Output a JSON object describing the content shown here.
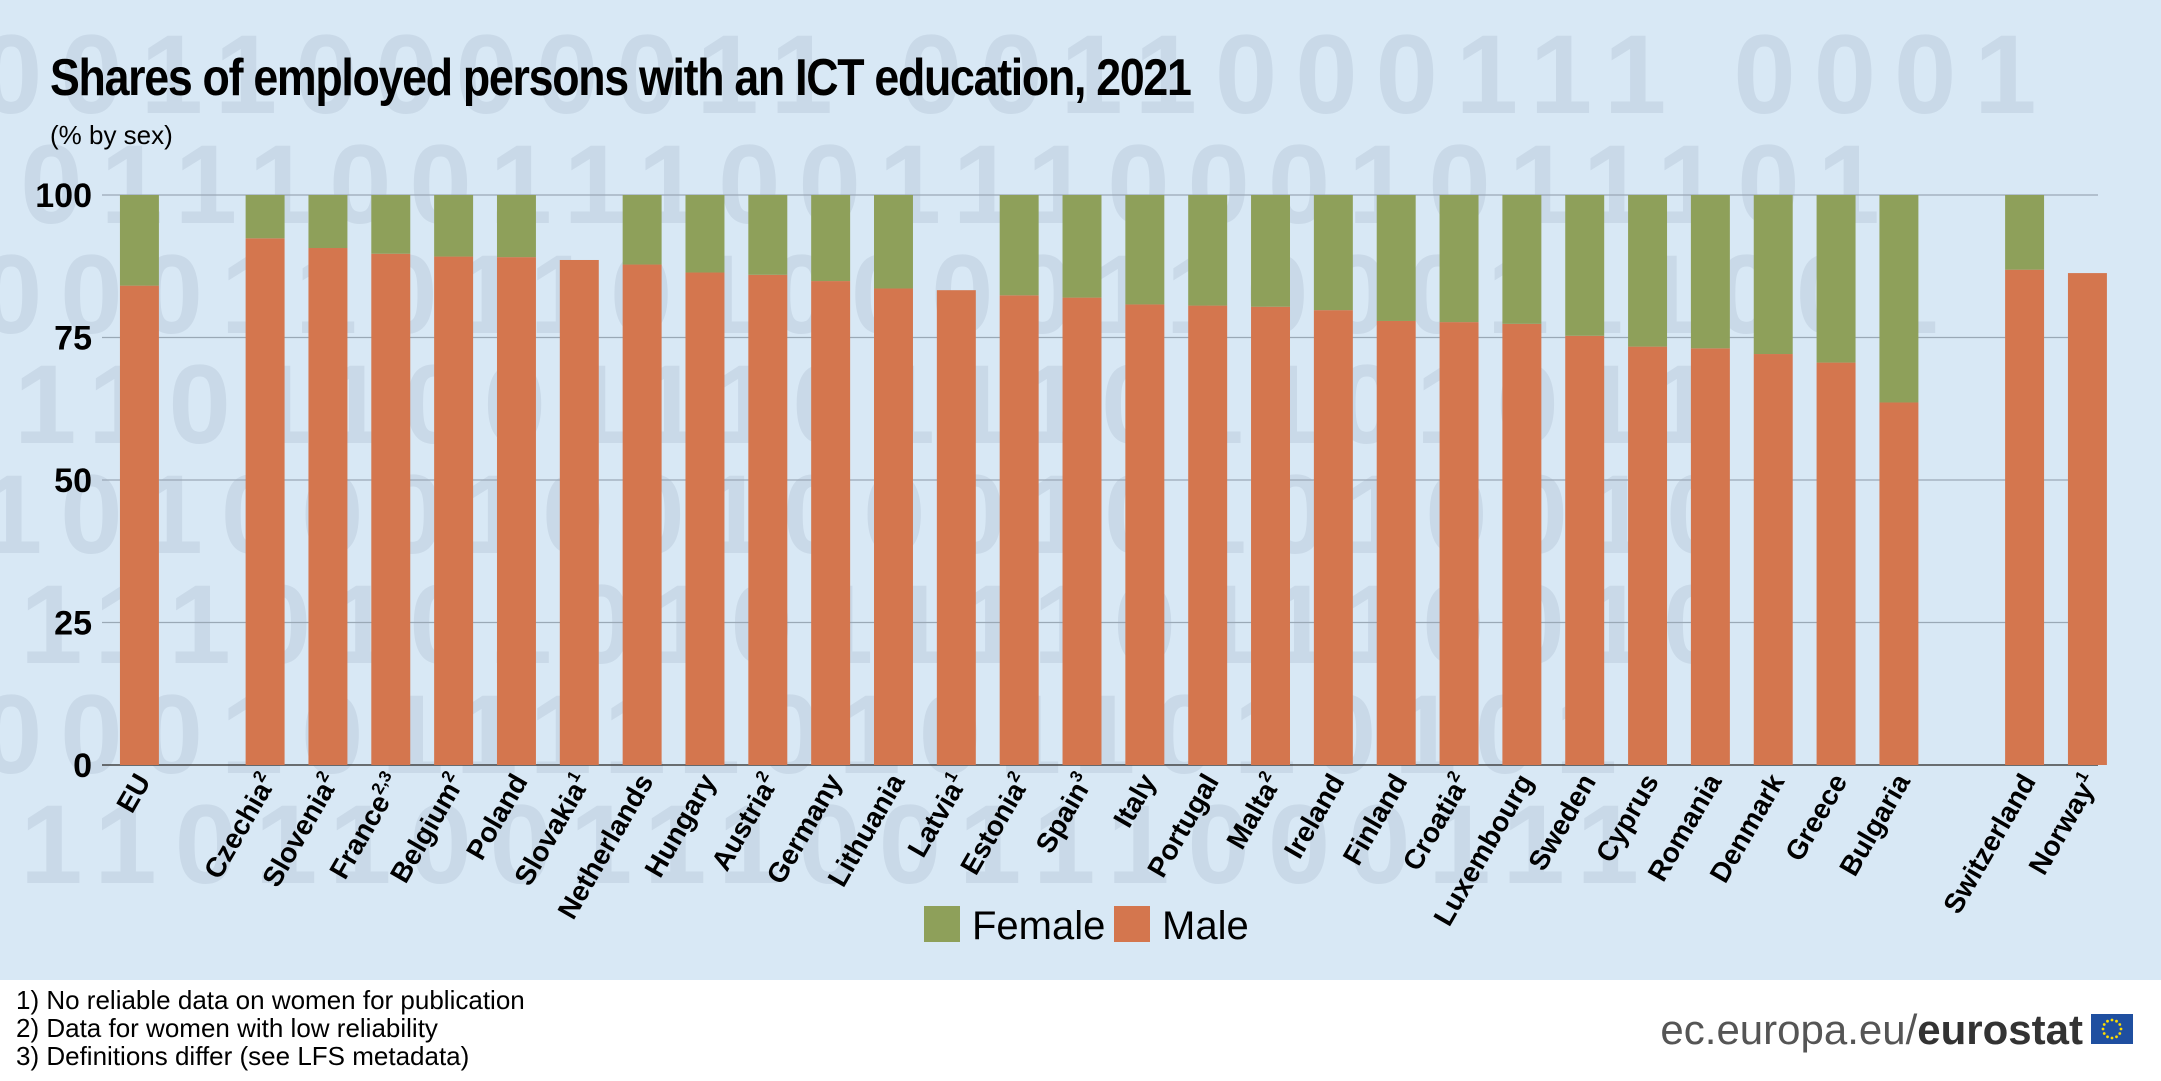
{
  "page": {
    "title": "Shares of employed persons with an ICT education, 2021",
    "subtitle": "(% by sex)",
    "footnotes": [
      "1) No reliable data on women for publication",
      "2) Data for women with low reliability",
      "3) Definitions differ (see LFS metadata)"
    ],
    "source_site": "ec.europa.eu/",
    "source_brand": "eurostat",
    "flag_icon": "eu-flag-icon"
  },
  "background_digits": [
    "00110000011 0011000111 0001",
    "1011100111001110001011101",
    "0001101101000011000111001",
    "11101100111011101101011",
    "1010001001000101010010",
    "01110101010111101110010",
    "000101111101011010101",
    "0110110011100111000111"
  ],
  "chart_data": {
    "type": "bar",
    "stacked": true,
    "title": "Shares of employed persons with an ICT education, 2021",
    "subtitle": "(% by sex)",
    "xlabel": "",
    "ylabel": "",
    "ylim": [
      0,
      100
    ],
    "yticks": [
      0,
      25,
      50,
      75,
      100
    ],
    "grid": true,
    "legend_position": "bottom-center",
    "categories": [
      "EU",
      "Czechia",
      "Slovenia",
      "France",
      "Belgium",
      "Poland",
      "Slovakia",
      "Netherlands",
      "Hungary",
      "Austria",
      "Germany",
      "Lithuania",
      "Latvia",
      "Estonia",
      "Spain",
      "Italy",
      "Portugal",
      "Malta",
      "Ireland",
      "Finland",
      "Croatia",
      "Luxembourg",
      "Sweden",
      "Cyprus",
      "Romania",
      "Denmark",
      "Greece",
      "Bulgaria",
      "Switzerland",
      "Norway"
    ],
    "footnote_marks": [
      "",
      "2",
      "2",
      "2,3",
      "2",
      "",
      "1",
      "",
      "",
      "2",
      "",
      "",
      "1",
      "2",
      "3",
      "",
      "",
      "2",
      "",
      "",
      "2",
      "",
      "",
      "",
      "",
      "",
      "",
      "",
      "",
      "1"
    ],
    "group_break_after": [
      0,
      27
    ],
    "series": [
      {
        "name": "Male",
        "color": "#d4764e",
        "values": [
          84.1,
          92.4,
          90.7,
          89.7,
          89.2,
          89.1,
          88.6,
          87.8,
          86.4,
          86.0,
          84.9,
          83.6,
          83.3,
          82.4,
          82.0,
          80.8,
          80.6,
          80.4,
          79.8,
          77.9,
          77.7,
          77.4,
          75.3,
          73.4,
          73.1,
          72.1,
          70.6,
          63.6,
          86.9,
          86.3
        ]
      },
      {
        "name": "Female",
        "color": "#8ea05a",
        "values": [
          15.9,
          7.6,
          9.3,
          10.3,
          10.8,
          10.9,
          null,
          12.2,
          13.6,
          14.0,
          15.1,
          16.4,
          null,
          17.6,
          18.0,
          19.2,
          19.4,
          19.6,
          20.2,
          22.1,
          22.3,
          22.6,
          24.7,
          26.6,
          26.9,
          27.9,
          29.4,
          36.4,
          13.1,
          null
        ]
      }
    ]
  }
}
